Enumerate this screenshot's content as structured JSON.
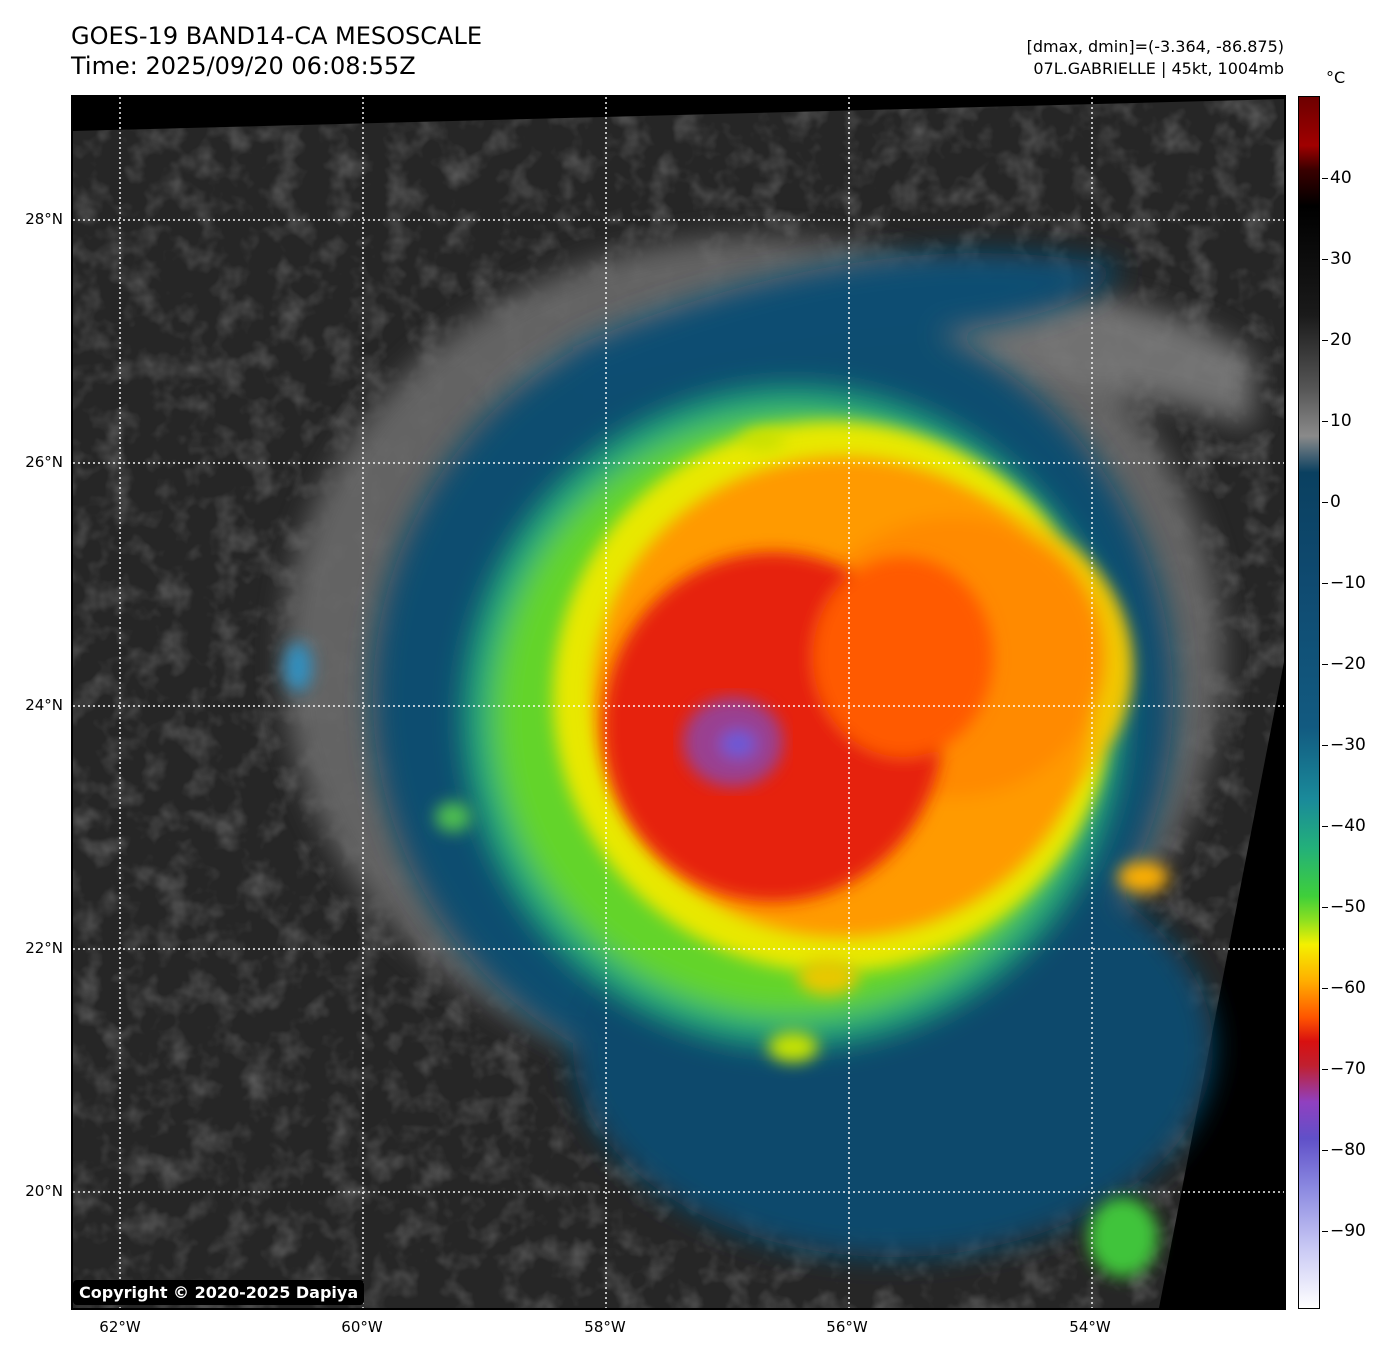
{
  "header": {
    "title_line1": "GOES-19 BAND14-CA MESOSCALE",
    "title_line2": "Time: 2025/09/20 06:08:55Z",
    "range_text": "[dmax, dmin]=(-3.364, -86.875)",
    "storm_text": "07L.GABRIELLE | 45kt, 1004mb"
  },
  "map": {
    "lat_labels": [
      "28°N",
      "26°N",
      "24°N",
      "22°N",
      "20°N"
    ],
    "lon_labels": [
      "62°W",
      "60°W",
      "58°W",
      "56°W",
      "54°W"
    ],
    "storm_center": {
      "lon": -56.9,
      "lat": 23.7
    }
  },
  "colorbar": {
    "unit": "°C",
    "ticks": [
      "40",
      "30",
      "20",
      "10",
      "0",
      "−10",
      "−20",
      "−30",
      "−40",
      "−50",
      "−60",
      "−70",
      "−80",
      "−90"
    ],
    "range": [
      -100,
      50
    ]
  },
  "copyright": "Copyright © 2020-2025 Dapiya"
}
